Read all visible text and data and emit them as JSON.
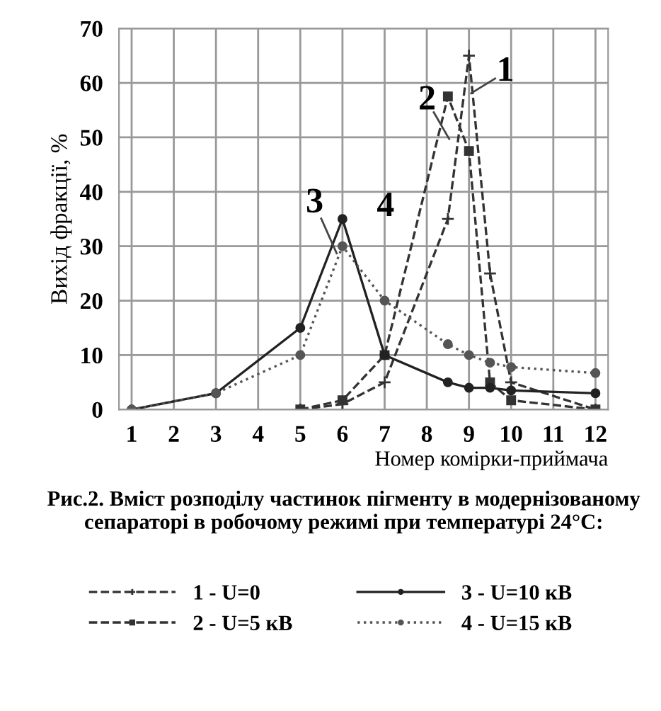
{
  "chart_data": {
    "type": "line",
    "title": "Рис.2. Вміст розподілу частинок пігменту в модернізованому сепараторі в робочому режимі при температурі 24°С:",
    "xlabel": "Номер комірки-приймача",
    "ylabel": "Вихід фракції, %",
    "xlim": [
      0.7,
      12.3
    ],
    "xticks": [
      1,
      2,
      3,
      4,
      5,
      6,
      7,
      8,
      9,
      10,
      11,
      12
    ],
    "ylim": [
      0,
      70
    ],
    "yticks": [
      0,
      10,
      20,
      30,
      40,
      50,
      60,
      70
    ],
    "grid": true,
    "legend": "bottom",
    "series": [
      {
        "name": "1 - U=0",
        "color": "#333333",
        "line_style": "dashed",
        "marker": "cross",
        "x": [
          5,
          6,
          7,
          8.5,
          9,
          9.5,
          10,
          12
        ],
        "values": [
          0,
          1,
          5,
          35,
          65,
          25,
          5,
          0
        ]
      },
      {
        "name": "2 - U=5 кВ",
        "color": "#333333",
        "line_style": "dashed",
        "marker": "square",
        "x": [
          5,
          6,
          7,
          8.5,
          9,
          9.5,
          10,
          12
        ],
        "values": [
          0,
          1.7,
          10,
          57.5,
          47.5,
          5,
          1.7,
          0
        ]
      },
      {
        "name": "3 - U=10 кВ",
        "color": "#222222",
        "line_style": "solid",
        "marker": "circle",
        "x": [
          1,
          3,
          5,
          6,
          7,
          8.5,
          9,
          9.5,
          10,
          12
        ],
        "values": [
          0,
          3,
          15,
          35,
          10,
          5,
          4,
          4,
          3.5,
          3
        ]
      },
      {
        "name": "4 - U=15 кВ",
        "color": "#555555",
        "line_style": "dotted",
        "marker": "circle",
        "x": [
          1,
          3,
          5,
          6,
          7,
          8.5,
          9,
          9.5,
          10,
          12
        ],
        "values": [
          0,
          3,
          10,
          30,
          20,
          12,
          10,
          8.6,
          7.8,
          6.7
        ]
      }
    ],
    "annotations": [
      "1",
      "2",
      "3",
      "4"
    ]
  }
}
